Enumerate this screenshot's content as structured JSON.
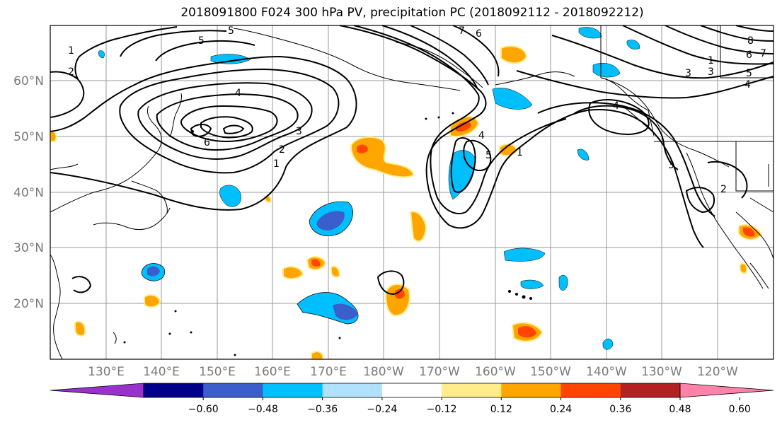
{
  "title": "2018091800 F024 300 hPa PV, precipitation PC (2018092112 - 2018092212)",
  "map": {
    "lon_labels": [
      "130°E",
      "140°E",
      "150°E",
      "160°E",
      "170°E",
      "180°W",
      "170°W",
      "160°W",
      "150°W",
      "140°W",
      "130°W",
      "120°W"
    ],
    "lat_labels": [
      "20°N",
      "30°N",
      "40°N",
      "50°N",
      "60°N"
    ],
    "contour_labels": [
      "1",
      "2",
      "3",
      "4",
      "5",
      "6",
      "1",
      "2",
      "3",
      "4",
      "5",
      "6",
      "7",
      "1",
      "2",
      "3",
      "4",
      "5",
      "3",
      "4",
      "5",
      "6",
      "7",
      "8",
      "1"
    ]
  },
  "colorbar": {
    "colors": [
      "#9932cc",
      "#00008b",
      "#3a5fcd",
      "#00bfff",
      "#b0e2ff",
      "#ffffff",
      "#ffec8b",
      "#ffa500",
      "#ff4500",
      "#b22222",
      "#ff82ab"
    ],
    "ticks": [
      "−0.60",
      "−0.48",
      "−0.36",
      "−0.24",
      "−0.12",
      "0.12",
      "0.24",
      "0.36",
      "0.48",
      "0.60"
    ]
  }
}
